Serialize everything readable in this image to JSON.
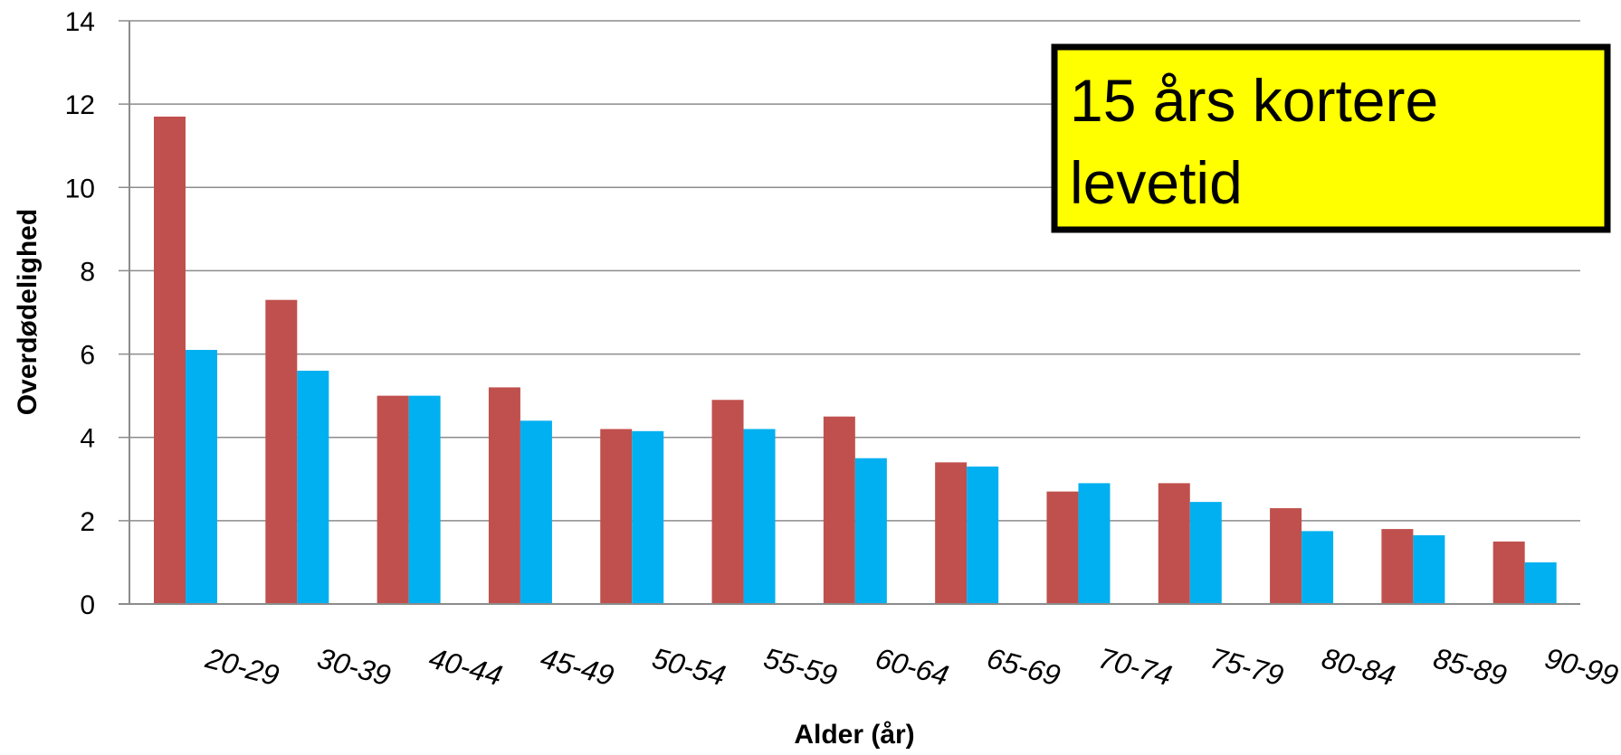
{
  "chart_data": {
    "type": "bar",
    "title": "",
    "xlabel": "Alder (år)",
    "ylabel": "Overdødelighed",
    "categories": [
      "20-29",
      "30-39",
      "40-44",
      "45-49",
      "50-54",
      "55-59",
      "60-64",
      "65-69",
      "70-74",
      "75-79",
      "80-84",
      "85-89",
      "90-99"
    ],
    "series": [
      {
        "color": "#c0504d",
        "values": [
          11.7,
          7.3,
          5.0,
          5.2,
          4.2,
          4.9,
          4.5,
          3.4,
          2.7,
          2.9,
          2.3,
          1.8,
          1.5
        ]
      },
      {
        "color": "#00b0f0",
        "values": [
          6.1,
          5.6,
          5.0,
          4.4,
          4.15,
          4.2,
          3.5,
          3.3,
          2.9,
          2.45,
          1.75,
          1.65,
          1.0
        ]
      }
    ],
    "ylim": [
      0,
      14
    ],
    "yticks": [
      "0",
      "2",
      "4",
      "6",
      "8",
      "10",
      "12",
      "14"
    ],
    "grid": true,
    "legend": "none"
  },
  "callout": {
    "line1": "15 års kortere",
    "line2": "levetid",
    "background": "#ffff00",
    "border": "#000000"
  }
}
